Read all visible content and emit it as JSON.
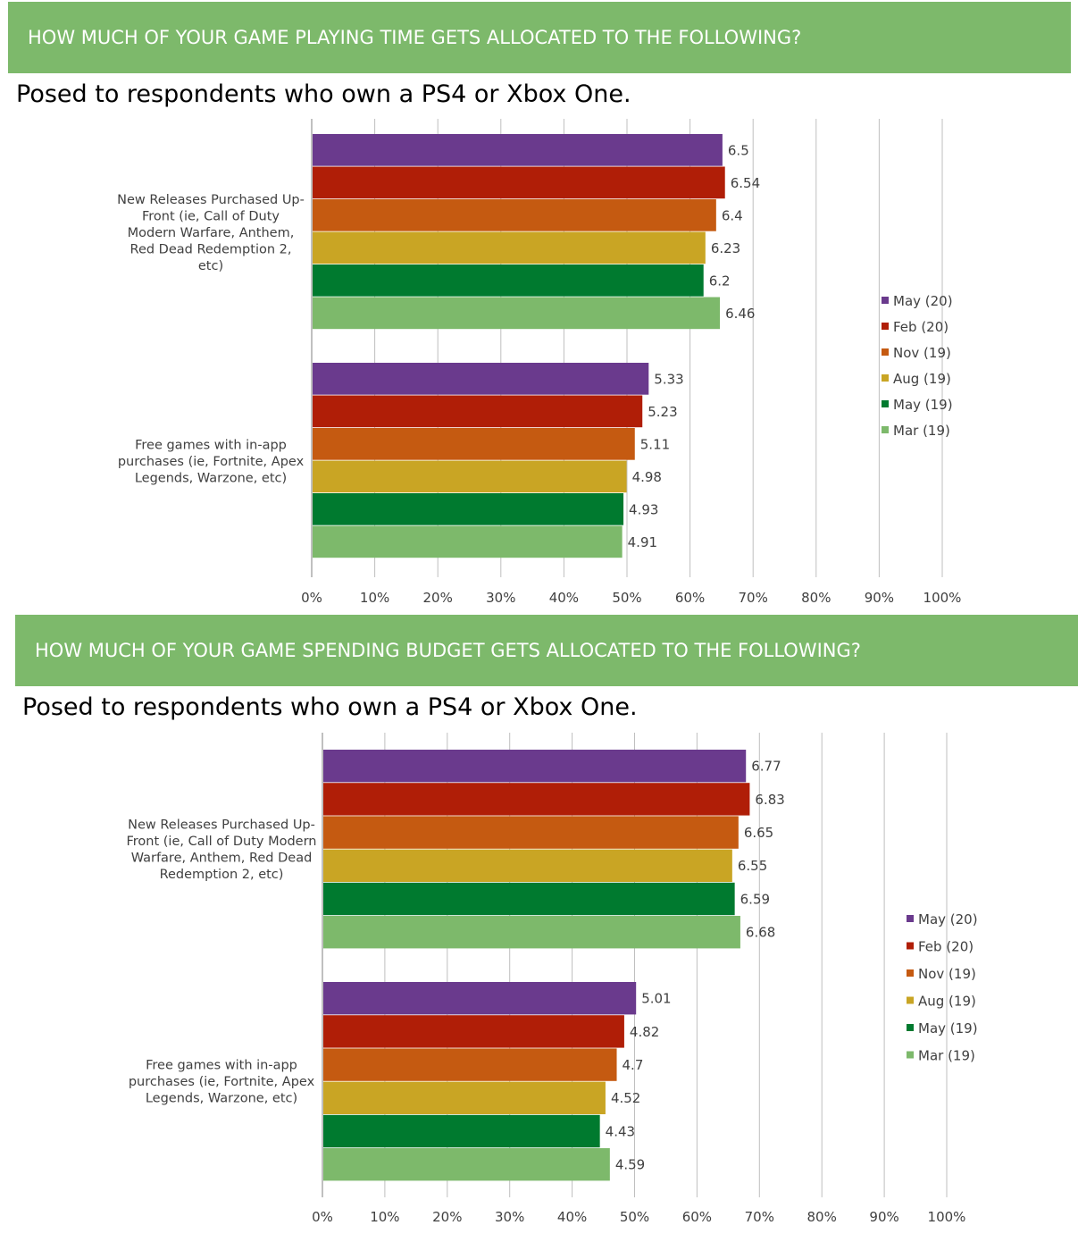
{
  "banner1": "HOW MUCH OF YOUR GAME PLAYING TIME GETS ALLOCATED TO THE FOLLOWING?",
  "subtitle1": "Posed to respondents who own a PS4 or Xbox One.",
  "banner2": "HOW MUCH OF YOUR GAME SPENDING BUDGET GETS ALLOCATED TO THE FOLLOWING?",
  "subtitle2": "Posed to respondents who own a PS4 or Xbox One.",
  "colors": {
    "May (20)": "#6a3a8d",
    "Feb (20)": "#b01e07",
    "Nov (19)": "#c55a11",
    "Aug (19)": "#c9a524",
    "May (19)": "#007a2f",
    "Mar (19)": "#7db96b",
    "banner": "#7db96b"
  },
  "chart_data": [
    {
      "type": "bar",
      "orientation": "horizontal",
      "categories": [
        "New Releases Purchased Up-Front (ie, Call of Duty Modern Warfare, Anthem, Red Dead Redemption 2, etc)",
        "Free games with in-app purchases (ie, Fortnite, Apex Legends, Warzone, etc)"
      ],
      "category_lines": [
        [
          "New Releases Purchased Up-",
          "Front (ie, Call of Duty",
          "Modern Warfare, Anthem,",
          "Red Dead Redemption 2,",
          "etc)"
        ],
        [
          "Free games with in-app",
          "purchases (ie, Fortnite, Apex",
          "Legends, Warzone, etc)"
        ]
      ],
      "series": [
        {
          "name": "May (20)",
          "values": [
            6.5,
            5.33
          ]
        },
        {
          "name": "Feb (20)",
          "values": [
            6.54,
            5.23
          ]
        },
        {
          "name": "Nov (19)",
          "values": [
            6.4,
            5.11
          ]
        },
        {
          "name": "Aug (19)",
          "values": [
            6.23,
            4.98
          ]
        },
        {
          "name": "May (19)",
          "values": [
            6.2,
            4.93
          ]
        },
        {
          "name": "Mar (19)",
          "values": [
            6.46,
            4.91
          ]
        }
      ],
      "x_ticks": [
        "0%",
        "10%",
        "20%",
        "30%",
        "40%",
        "50%",
        "60%",
        "70%",
        "80%",
        "90%",
        "100%"
      ],
      "xlim": [
        0,
        10
      ],
      "grid": "vertical",
      "legend": "right"
    },
    {
      "type": "bar",
      "orientation": "horizontal",
      "categories": [
        "New Releases Purchased Up-Front (ie, Call of Duty Modern Warfare, Anthem, Red Dead Redemption 2, etc)",
        "Free games with in-app purchases (ie, Fortnite, Apex Legends, Warzone, etc)"
      ],
      "category_lines": [
        [
          "New Releases Purchased Up-",
          "Front (ie, Call of Duty Modern",
          "Warfare, Anthem, Red Dead",
          "Redemption 2, etc)"
        ],
        [
          "Free games with in-app",
          "purchases (ie, Fortnite, Apex",
          "Legends, Warzone, etc)"
        ]
      ],
      "series": [
        {
          "name": "May (20)",
          "values": [
            6.77,
            5.01
          ]
        },
        {
          "name": "Feb (20)",
          "values": [
            6.83,
            4.82
          ]
        },
        {
          "name": "Nov (19)",
          "values": [
            6.65,
            4.7
          ]
        },
        {
          "name": "Aug (19)",
          "values": [
            6.55,
            4.52
          ]
        },
        {
          "name": "May (19)",
          "values": [
            6.59,
            4.43
          ]
        },
        {
          "name": "Mar (19)",
          "values": [
            6.68,
            4.59
          ]
        }
      ],
      "x_ticks": [
        "0%",
        "10%",
        "20%",
        "30%",
        "40%",
        "50%",
        "60%",
        "70%",
        "80%",
        "90%",
        "100%"
      ],
      "xlim": [
        0,
        10
      ],
      "grid": "vertical",
      "legend": "right"
    }
  ]
}
